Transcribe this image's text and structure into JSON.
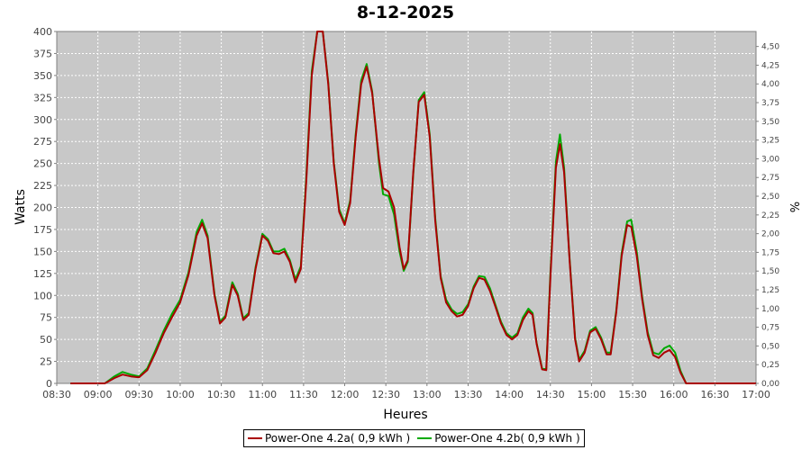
{
  "chart_data": {
    "type": "line",
    "title": "8-12-2025",
    "xlabel": "Heures",
    "ylabel": "Watts",
    "y2label": "%",
    "x_ticks": [
      "08:30",
      "09:00",
      "09:30",
      "10:00",
      "10:30",
      "11:00",
      "11:30",
      "12:00",
      "12:30",
      "13:00",
      "13:30",
      "14:00",
      "14:30",
      "15:00",
      "15:30",
      "16:00",
      "16:30",
      "17:00"
    ],
    "xlim": [
      "08:30",
      "17:00"
    ],
    "ylim": [
      0,
      400
    ],
    "y_ticks": [
      0,
      25,
      50,
      75,
      100,
      125,
      150,
      175,
      200,
      225,
      250,
      275,
      300,
      325,
      350,
      375,
      400
    ],
    "y2lim": [
      0,
      4.7
    ],
    "y2_ticks": [
      "0,00",
      "0,25",
      "0,50",
      "0,75",
      "1,00",
      "1,25",
      "1,50",
      "1,75",
      "2,00",
      "2,25",
      "2,50",
      "2,75",
      "3,00",
      "3,25",
      "3,50",
      "3,75",
      "4,00",
      "4,25",
      "4,50"
    ],
    "grid": true,
    "legend_position": "bottom",
    "series": [
      {
        "name": "Power-One 4.2a( 0,9 kWh )",
        "color": "#aa0000",
        "points": [
          [
            "08:40",
            0
          ],
          [
            "08:50",
            0
          ],
          [
            "09:00",
            0
          ],
          [
            "09:05",
            0
          ],
          [
            "09:12",
            6
          ],
          [
            "09:18",
            10
          ],
          [
            "09:24",
            8
          ],
          [
            "09:30",
            7
          ],
          [
            "09:36",
            15
          ],
          [
            "09:42",
            35
          ],
          [
            "09:48",
            57
          ],
          [
            "09:54",
            75
          ],
          [
            "10:00",
            92
          ],
          [
            "10:06",
            123
          ],
          [
            "10:12",
            168
          ],
          [
            "10:16",
            182
          ],
          [
            "10:20",
            165
          ],
          [
            "10:25",
            100
          ],
          [
            "10:29",
            68
          ],
          [
            "10:33",
            75
          ],
          [
            "10:38",
            112
          ],
          [
            "10:42",
            100
          ],
          [
            "10:46",
            72
          ],
          [
            "10:50",
            78
          ],
          [
            "10:55",
            130
          ],
          [
            "11:00",
            168
          ],
          [
            "11:04",
            162
          ],
          [
            "11:08",
            148
          ],
          [
            "11:12",
            147
          ],
          [
            "11:16",
            150
          ],
          [
            "11:20",
            138
          ],
          [
            "11:24",
            115
          ],
          [
            "11:28",
            130
          ],
          [
            "11:32",
            230
          ],
          [
            "11:36",
            350
          ],
          [
            "11:40",
            400
          ],
          [
            "11:44",
            400
          ],
          [
            "11:48",
            340
          ],
          [
            "11:52",
            250
          ],
          [
            "11:56",
            195
          ],
          [
            "12:00",
            180
          ],
          [
            "12:04",
            205
          ],
          [
            "12:08",
            280
          ],
          [
            "12:12",
            340
          ],
          [
            "12:16",
            360
          ],
          [
            "12:20",
            330
          ],
          [
            "12:25",
            255
          ],
          [
            "12:28",
            222
          ],
          [
            "12:32",
            218
          ],
          [
            "12:36",
            200
          ],
          [
            "12:40",
            155
          ],
          [
            "12:43",
            130
          ],
          [
            "12:46",
            140
          ],
          [
            "12:50",
            240
          ],
          [
            "12:54",
            320
          ],
          [
            "12:58",
            328
          ],
          [
            "13:02",
            280
          ],
          [
            "13:06",
            185
          ],
          [
            "13:10",
            120
          ],
          [
            "13:14",
            92
          ],
          [
            "13:18",
            82
          ],
          [
            "13:22",
            76
          ],
          [
            "13:26",
            78
          ],
          [
            "13:30",
            88
          ],
          [
            "13:34",
            108
          ],
          [
            "13:38",
            120
          ],
          [
            "13:42",
            118
          ],
          [
            "13:46",
            105
          ],
          [
            "13:50",
            87
          ],
          [
            "13:54",
            68
          ],
          [
            "13:58",
            55
          ],
          [
            "14:02",
            50
          ],
          [
            "14:06",
            55
          ],
          [
            "14:10",
            72
          ],
          [
            "14:14",
            82
          ],
          [
            "14:17",
            78
          ],
          [
            "14:20",
            45
          ],
          [
            "14:24",
            16
          ],
          [
            "14:27",
            15
          ],
          [
            "14:30",
            120
          ],
          [
            "14:34",
            245
          ],
          [
            "14:37",
            272
          ],
          [
            "14:40",
            240
          ],
          [
            "14:44",
            140
          ],
          [
            "14:48",
            50
          ],
          [
            "14:51",
            25
          ],
          [
            "14:55",
            35
          ],
          [
            "14:59",
            58
          ],
          [
            "15:03",
            62
          ],
          [
            "15:07",
            50
          ],
          [
            "15:11",
            33
          ],
          [
            "15:14",
            33
          ],
          [
            "15:18",
            80
          ],
          [
            "15:22",
            145
          ],
          [
            "15:26",
            180
          ],
          [
            "15:29",
            178
          ],
          [
            "15:33",
            145
          ],
          [
            "15:37",
            95
          ],
          [
            "15:41",
            55
          ],
          [
            "15:45",
            32
          ],
          [
            "15:49",
            29
          ],
          [
            "15:53",
            35
          ],
          [
            "15:57",
            38
          ],
          [
            "16:01",
            30
          ],
          [
            "16:05",
            12
          ],
          [
            "16:09",
            0
          ],
          [
            "16:13",
            0
          ],
          [
            "16:20",
            0
          ],
          [
            "16:30",
            0
          ],
          [
            "16:45",
            0
          ],
          [
            "17:00",
            0
          ]
        ]
      },
      {
        "name": "Power-One 4.2b( 0,9 kWh )",
        "color": "#00aa00",
        "points": [
          [
            "08:40",
            0
          ],
          [
            "08:50",
            0
          ],
          [
            "09:00",
            0
          ],
          [
            "09:05",
            0
          ],
          [
            "09:12",
            8
          ],
          [
            "09:18",
            13
          ],
          [
            "09:24",
            10
          ],
          [
            "09:30",
            8
          ],
          [
            "09:36",
            17
          ],
          [
            "09:42",
            38
          ],
          [
            "09:48",
            60
          ],
          [
            "09:54",
            79
          ],
          [
            "10:00",
            95
          ],
          [
            "10:06",
            126
          ],
          [
            "10:12",
            172
          ],
          [
            "10:16",
            186
          ],
          [
            "10:20",
            168
          ],
          [
            "10:25",
            102
          ],
          [
            "10:29",
            70
          ],
          [
            "10:33",
            77
          ],
          [
            "10:38",
            115
          ],
          [
            "10:42",
            102
          ],
          [
            "10:46",
            74
          ],
          [
            "10:50",
            80
          ],
          [
            "10:55",
            132
          ],
          [
            "11:00",
            170
          ],
          [
            "11:04",
            164
          ],
          [
            "11:08",
            150
          ],
          [
            "11:12",
            150
          ],
          [
            "11:16",
            153
          ],
          [
            "11:20",
            140
          ],
          [
            "11:24",
            118
          ],
          [
            "11:28",
            133
          ],
          [
            "11:32",
            235
          ],
          [
            "11:36",
            355
          ],
          [
            "11:40",
            400
          ],
          [
            "11:44",
            400
          ],
          [
            "11:48",
            342
          ],
          [
            "11:52",
            252
          ],
          [
            "11:56",
            198
          ],
          [
            "12:00",
            182
          ],
          [
            "12:04",
            208
          ],
          [
            "12:08",
            283
          ],
          [
            "12:12",
            344
          ],
          [
            "12:16",
            363
          ],
          [
            "12:20",
            332
          ],
          [
            "12:25",
            250
          ],
          [
            "12:28",
            215
          ],
          [
            "12:32",
            213
          ],
          [
            "12:36",
            192
          ],
          [
            "12:40",
            150
          ],
          [
            "12:43",
            128
          ],
          [
            "12:46",
            138
          ],
          [
            "12:50",
            238
          ],
          [
            "12:54",
            322
          ],
          [
            "12:58",
            331
          ],
          [
            "13:02",
            283
          ],
          [
            "13:06",
            188
          ],
          [
            "13:10",
            122
          ],
          [
            "13:14",
            95
          ],
          [
            "13:18",
            84
          ],
          [
            "13:22",
            79
          ],
          [
            "13:26",
            81
          ],
          [
            "13:30",
            90
          ],
          [
            "13:34",
            110
          ],
          [
            "13:38",
            122
          ],
          [
            "13:42",
            121
          ],
          [
            "13:46",
            108
          ],
          [
            "13:50",
            89
          ],
          [
            "13:54",
            70
          ],
          [
            "13:58",
            57
          ],
          [
            "14:02",
            52
          ],
          [
            "14:06",
            57
          ],
          [
            "14:10",
            75
          ],
          [
            "14:14",
            85
          ],
          [
            "14:17",
            80
          ],
          [
            "14:20",
            46
          ],
          [
            "14:24",
            17
          ],
          [
            "14:27",
            16
          ],
          [
            "14:30",
            125
          ],
          [
            "14:34",
            252
          ],
          [
            "14:37",
            283
          ],
          [
            "14:40",
            245
          ],
          [
            "14:44",
            142
          ],
          [
            "14:48",
            52
          ],
          [
            "14:51",
            27
          ],
          [
            "14:55",
            37
          ],
          [
            "14:59",
            60
          ],
          [
            "15:03",
            64
          ],
          [
            "15:07",
            52
          ],
          [
            "15:11",
            35
          ],
          [
            "15:14",
            35
          ],
          [
            "15:18",
            82
          ],
          [
            "15:22",
            148
          ],
          [
            "15:26",
            184
          ],
          [
            "15:29",
            186
          ],
          [
            "15:33",
            150
          ],
          [
            "15:37",
            98
          ],
          [
            "15:41",
            58
          ],
          [
            "15:45",
            35
          ],
          [
            "15:49",
            33
          ],
          [
            "15:53",
            40
          ],
          [
            "15:57",
            43
          ],
          [
            "16:01",
            35
          ],
          [
            "16:05",
            14
          ],
          [
            "16:09",
            0
          ],
          [
            "16:13",
            0
          ],
          [
            "16:20",
            0
          ],
          [
            "16:30",
            0
          ],
          [
            "16:45",
            0
          ],
          [
            "17:00",
            0
          ]
        ]
      }
    ]
  }
}
